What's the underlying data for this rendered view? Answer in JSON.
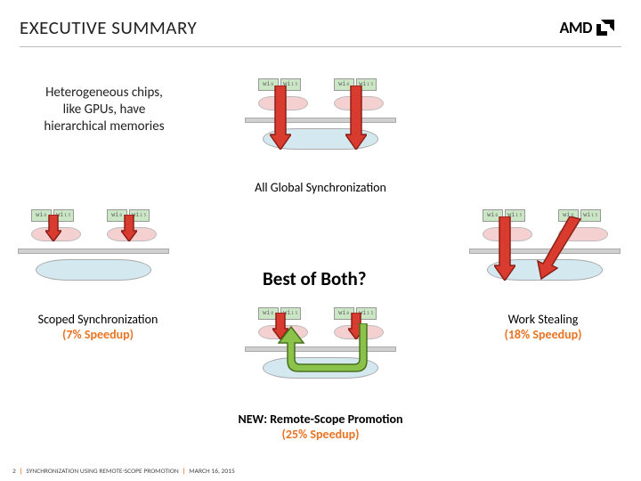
{
  "header": {
    "title": "EXECUTIVE SUMMARY",
    "logo_text": "AMD"
  },
  "subtitle": "Heterogeneous chips,\nlike GPUs, have\nhierarchical memories",
  "wi_labels": [
    "wi",
    "wi",
    "wi",
    "wi"
  ],
  "diagrams": {
    "top": {
      "caption": "All Global Synchronization"
    },
    "left": {
      "caption": "Scoped Synchronization",
      "speedup": "(7% Speedup)"
    },
    "right": {
      "caption": "Work Stealing",
      "speedup": "(18% Speedup)"
    },
    "bottom": {
      "caption": "NEW: Remote-Scope Promotion",
      "speedup": "(25% Speedup)"
    }
  },
  "center": "Best of Both?",
  "colors": {
    "red_arrow": "#d93b2e",
    "red_border": "#8a2018",
    "green_arrow": "#8bc24a",
    "green_border": "#4a7020",
    "orange": "#e87424",
    "wi_bg": "#cbe6c4",
    "local_cloud": "#f5d0d0",
    "global_cloud": "#d4e8f0"
  },
  "footer": {
    "page": "2",
    "title": "SYNCHRONIZATION USING REMOTE-SCOPE PROMOTION",
    "date": "MARCH 16, 2015"
  }
}
